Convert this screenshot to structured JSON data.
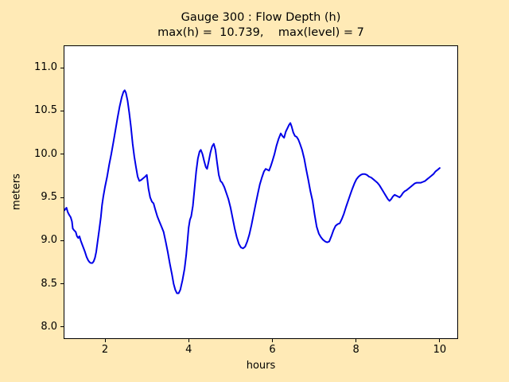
{
  "figure": {
    "background_color": "#FFEAB6",
    "plot_background_color": "#FFFFFF",
    "axis_color": "#000000"
  },
  "chart_data": {
    "type": "line",
    "title": "Gauge 300 : Flow Depth (h)",
    "subtitle": "max(h) =  10.739,    max(level) = 7",
    "xlabel": "hours",
    "ylabel": "meters",
    "xlim": [
      1.03,
      10.42
    ],
    "ylim": [
      7.87,
      11.25
    ],
    "xticks": [
      2,
      4,
      6,
      8,
      10
    ],
    "xtick_labels": [
      "2",
      "4",
      "6",
      "8",
      "10"
    ],
    "yticks": [
      8.0,
      8.5,
      9.0,
      9.5,
      10.0,
      10.5,
      11.0
    ],
    "ytick_labels": [
      "8.0",
      "8.5",
      "9.0",
      "9.5",
      "10.0",
      "10.5",
      "11.0"
    ],
    "grid": false,
    "legend": "none",
    "line_color": "#0000E8",
    "line_width": 2,
    "max_h": 10.739,
    "max_level": 7,
    "series": [
      {
        "name": "flow-depth-h",
        "points": [
          [
            1.03,
            9.35
          ],
          [
            1.06,
            9.37
          ],
          [
            1.08,
            9.38
          ],
          [
            1.11,
            9.33
          ],
          [
            1.14,
            9.3
          ],
          [
            1.18,
            9.27
          ],
          [
            1.21,
            9.22
          ],
          [
            1.23,
            9.14
          ],
          [
            1.26,
            9.12
          ],
          [
            1.3,
            9.1
          ],
          [
            1.33,
            9.05
          ],
          [
            1.36,
            9.03
          ],
          [
            1.39,
            9.05
          ],
          [
            1.42,
            9.0
          ],
          [
            1.45,
            8.96
          ],
          [
            1.49,
            8.91
          ],
          [
            1.52,
            8.87
          ],
          [
            1.56,
            8.81
          ],
          [
            1.6,
            8.77
          ],
          [
            1.63,
            8.75
          ],
          [
            1.66,
            8.74
          ],
          [
            1.7,
            8.74
          ],
          [
            1.73,
            8.76
          ],
          [
            1.76,
            8.8
          ],
          [
            1.79,
            8.87
          ],
          [
            1.82,
            8.98
          ],
          [
            1.86,
            9.12
          ],
          [
            1.9,
            9.27
          ],
          [
            1.93,
            9.41
          ],
          [
            1.96,
            9.51
          ],
          [
            2.0,
            9.62
          ],
          [
            2.05,
            9.74
          ],
          [
            2.1,
            9.88
          ],
          [
            2.15,
            10.0
          ],
          [
            2.2,
            10.14
          ],
          [
            2.25,
            10.28
          ],
          [
            2.3,
            10.42
          ],
          [
            2.35,
            10.55
          ],
          [
            2.4,
            10.66
          ],
          [
            2.44,
            10.72
          ],
          [
            2.47,
            10.74
          ],
          [
            2.5,
            10.71
          ],
          [
            2.54,
            10.62
          ],
          [
            2.58,
            10.48
          ],
          [
            2.62,
            10.32
          ],
          [
            2.66,
            10.12
          ],
          [
            2.7,
            9.97
          ],
          [
            2.74,
            9.85
          ],
          [
            2.78,
            9.74
          ],
          [
            2.82,
            9.69
          ],
          [
            2.86,
            9.7
          ],
          [
            2.91,
            9.72
          ],
          [
            2.96,
            9.74
          ],
          [
            3.0,
            9.76
          ],
          [
            3.04,
            9.6
          ],
          [
            3.08,
            9.5
          ],
          [
            3.12,
            9.45
          ],
          [
            3.16,
            9.43
          ],
          [
            3.2,
            9.36
          ],
          [
            3.25,
            9.28
          ],
          [
            3.3,
            9.22
          ],
          [
            3.35,
            9.16
          ],
          [
            3.4,
            9.1
          ],
          [
            3.45,
            8.99
          ],
          [
            3.5,
            8.87
          ],
          [
            3.55,
            8.73
          ],
          [
            3.6,
            8.61
          ],
          [
            3.64,
            8.5
          ],
          [
            3.68,
            8.43
          ],
          [
            3.72,
            8.39
          ],
          [
            3.76,
            8.39
          ],
          [
            3.8,
            8.43
          ],
          [
            3.85,
            8.54
          ],
          [
            3.9,
            8.67
          ],
          [
            3.94,
            8.83
          ],
          [
            3.97,
            8.99
          ],
          [
            4.0,
            9.15
          ],
          [
            4.03,
            9.24
          ],
          [
            4.06,
            9.28
          ],
          [
            4.1,
            9.4
          ],
          [
            4.14,
            9.6
          ],
          [
            4.18,
            9.8
          ],
          [
            4.22,
            9.95
          ],
          [
            4.26,
            10.03
          ],
          [
            4.29,
            10.05
          ],
          [
            4.33,
            10.0
          ],
          [
            4.37,
            9.92
          ],
          [
            4.41,
            9.85
          ],
          [
            4.44,
            9.83
          ],
          [
            4.48,
            9.92
          ],
          [
            4.52,
            10.02
          ],
          [
            4.56,
            10.09
          ],
          [
            4.6,
            10.12
          ],
          [
            4.64,
            10.05
          ],
          [
            4.68,
            9.9
          ],
          [
            4.72,
            9.76
          ],
          [
            4.76,
            9.69
          ],
          [
            4.8,
            9.67
          ],
          [
            4.85,
            9.62
          ],
          [
            4.9,
            9.55
          ],
          [
            4.95,
            9.48
          ],
          [
            5.0,
            9.38
          ],
          [
            5.05,
            9.26
          ],
          [
            5.1,
            9.14
          ],
          [
            5.15,
            9.04
          ],
          [
            5.2,
            8.96
          ],
          [
            5.25,
            8.92
          ],
          [
            5.3,
            8.91
          ],
          [
            5.35,
            8.93
          ],
          [
            5.4,
            8.99
          ],
          [
            5.45,
            9.07
          ],
          [
            5.5,
            9.18
          ],
          [
            5.55,
            9.3
          ],
          [
            5.6,
            9.42
          ],
          [
            5.65,
            9.54
          ],
          [
            5.7,
            9.65
          ],
          [
            5.75,
            9.73
          ],
          [
            5.8,
            9.8
          ],
          [
            5.84,
            9.83
          ],
          [
            5.88,
            9.82
          ],
          [
            5.92,
            9.81
          ],
          [
            5.96,
            9.86
          ],
          [
            6.0,
            9.92
          ],
          [
            6.05,
            10.0
          ],
          [
            6.1,
            10.1
          ],
          [
            6.15,
            10.18
          ],
          [
            6.2,
            10.24
          ],
          [
            6.24,
            10.21
          ],
          [
            6.28,
            10.19
          ],
          [
            6.32,
            10.26
          ],
          [
            6.36,
            10.3
          ],
          [
            6.4,
            10.34
          ],
          [
            6.43,
            10.36
          ],
          [
            6.46,
            10.32
          ],
          [
            6.5,
            10.25
          ],
          [
            6.54,
            10.21
          ],
          [
            6.58,
            10.2
          ],
          [
            6.62,
            10.17
          ],
          [
            6.66,
            10.12
          ],
          [
            6.71,
            10.05
          ],
          [
            6.76,
            9.95
          ],
          [
            6.81,
            9.82
          ],
          [
            6.86,
            9.7
          ],
          [
            6.91,
            9.57
          ],
          [
            6.96,
            9.46
          ],
          [
            7.01,
            9.3
          ],
          [
            7.06,
            9.16
          ],
          [
            7.11,
            9.08
          ],
          [
            7.16,
            9.04
          ],
          [
            7.21,
            9.01
          ],
          [
            7.26,
            8.99
          ],
          [
            7.31,
            8.98
          ],
          [
            7.36,
            8.99
          ],
          [
            7.41,
            9.05
          ],
          [
            7.46,
            9.12
          ],
          [
            7.51,
            9.17
          ],
          [
            7.56,
            9.19
          ],
          [
            7.61,
            9.2
          ],
          [
            7.66,
            9.25
          ],
          [
            7.71,
            9.31
          ],
          [
            7.76,
            9.39
          ],
          [
            7.81,
            9.46
          ],
          [
            7.86,
            9.53
          ],
          [
            7.91,
            9.6
          ],
          [
            7.96,
            9.66
          ],
          [
            8.01,
            9.71
          ],
          [
            8.06,
            9.74
          ],
          [
            8.11,
            9.76
          ],
          [
            8.16,
            9.77
          ],
          [
            8.21,
            9.77
          ],
          [
            8.26,
            9.76
          ],
          [
            8.31,
            9.74
          ],
          [
            8.36,
            9.73
          ],
          [
            8.41,
            9.71
          ],
          [
            8.46,
            9.69
          ],
          [
            8.51,
            9.67
          ],
          [
            8.56,
            9.64
          ],
          [
            8.61,
            9.6
          ],
          [
            8.66,
            9.56
          ],
          [
            8.71,
            9.52
          ],
          [
            8.76,
            9.48
          ],
          [
            8.8,
            9.46
          ],
          [
            8.84,
            9.48
          ],
          [
            8.88,
            9.51
          ],
          [
            8.92,
            9.53
          ],
          [
            8.96,
            9.52
          ],
          [
            9.0,
            9.51
          ],
          [
            9.04,
            9.5
          ],
          [
            9.08,
            9.52
          ],
          [
            9.12,
            9.55
          ],
          [
            9.16,
            9.57
          ],
          [
            9.2,
            9.58
          ],
          [
            9.25,
            9.6
          ],
          [
            9.3,
            9.62
          ],
          [
            9.35,
            9.64
          ],
          [
            9.4,
            9.66
          ],
          [
            9.45,
            9.67
          ],
          [
            9.5,
            9.67
          ],
          [
            9.55,
            9.67
          ],
          [
            9.6,
            9.68
          ],
          [
            9.65,
            9.69
          ],
          [
            9.7,
            9.71
          ],
          [
            9.75,
            9.73
          ],
          [
            9.8,
            9.75
          ],
          [
            9.85,
            9.77
          ],
          [
            9.9,
            9.8
          ],
          [
            9.95,
            9.82
          ],
          [
            10.0,
            9.84
          ]
        ]
      }
    ]
  }
}
